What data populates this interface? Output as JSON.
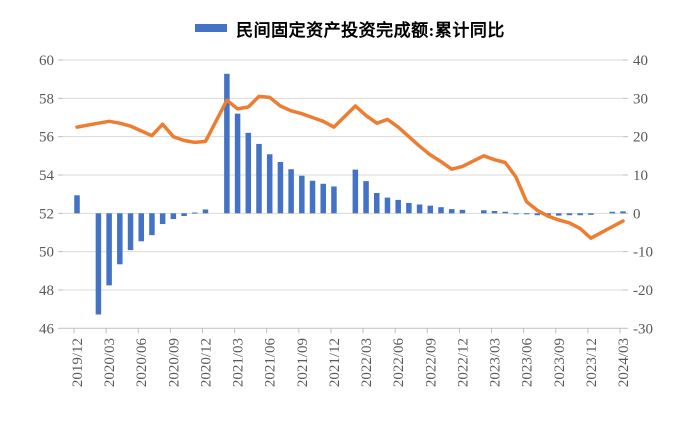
{
  "legend": {
    "bar_series_label": "民间固定资产投资完成额:累计同比"
  },
  "colors": {
    "bar": "#4472C4",
    "line": "#ED7D31",
    "grid": "#D9D9D9",
    "axis": "#BFBFBF",
    "tick_text": "#595959",
    "legend_text": "#000000",
    "background": "#FFFFFF"
  },
  "chart_data": {
    "type": "bar",
    "combo": "bar+line",
    "title": "",
    "legend_position": "top",
    "grid": true,
    "x": [
      "2019/12",
      "2020/02",
      "2020/03",
      "2020/04",
      "2020/05",
      "2020/06",
      "2020/07",
      "2020/08",
      "2020/09",
      "2020/10",
      "2020/11",
      "2020/12",
      "2021/02",
      "2021/03",
      "2021/04",
      "2021/05",
      "2021/06",
      "2021/07",
      "2021/08",
      "2021/09",
      "2021/10",
      "2021/11",
      "2021/12",
      "2022/02",
      "2022/03",
      "2022/04",
      "2022/05",
      "2022/06",
      "2022/07",
      "2022/08",
      "2022/09",
      "2022/10",
      "2022/11",
      "2022/12",
      "2023/02",
      "2023/03",
      "2023/04",
      "2023/05",
      "2023/06",
      "2023/07",
      "2023/08",
      "2023/09",
      "2023/10",
      "2023/11",
      "2023/12",
      "2024/02",
      "2024/03"
    ],
    "series": [
      {
        "name": "民间固定资产投资完成额:累计同比",
        "type": "bar",
        "axis": "right",
        "color": "#4472C4",
        "values": [
          4.7,
          -26.4,
          -18.8,
          -13.3,
          -9.6,
          -7.3,
          -5.7,
          -2.8,
          -1.5,
          -0.7,
          0.2,
          1.0,
          36.4,
          26.0,
          21.0,
          18.1,
          15.4,
          13.4,
          11.5,
          9.8,
          8.5,
          7.7,
          7.0,
          11.4,
          8.4,
          5.3,
          4.1,
          3.5,
          2.7,
          2.3,
          2.0,
          1.6,
          1.1,
          0.9,
          0.8,
          0.6,
          0.4,
          -0.1,
          -0.2,
          -0.5,
          -0.7,
          -0.6,
          -0.5,
          -0.5,
          -0.4,
          0.4,
          0.5
        ]
      },
      {
        "name": "",
        "type": "line",
        "axis": "left",
        "color": "#ED7D31",
        "values": [
          56.5,
          56.7,
          56.8,
          56.7,
          56.55,
          56.3,
          56.05,
          56.65,
          56.0,
          55.8,
          55.7,
          55.75,
          57.9,
          57.45,
          57.55,
          58.1,
          58.05,
          57.6,
          57.35,
          57.2,
          57.0,
          56.8,
          56.5,
          57.6,
          57.1,
          56.7,
          56.9,
          56.5,
          56.0,
          55.5,
          55.05,
          54.7,
          54.3,
          54.45,
          55.0,
          54.8,
          54.65,
          53.9,
          52.6,
          52.15,
          51.85,
          51.65,
          51.5,
          51.2,
          50.7,
          51.3,
          51.6
        ]
      }
    ],
    "left_axis": {
      "min": 46,
      "max": 60,
      "ticks": [
        60,
        58,
        56,
        54,
        52,
        50,
        48,
        46
      ]
    },
    "right_axis": {
      "min": -30,
      "max": 40,
      "ticks": [
        40,
        30,
        20,
        10,
        0,
        -10,
        -20,
        -30
      ]
    },
    "x_tick_labels": [
      "2019/12",
      "2020/03",
      "2020/06",
      "2020/09",
      "2020/12",
      "2021/03",
      "2021/06",
      "2021/09",
      "2021/12",
      "2022/03",
      "2022/06",
      "2022/09",
      "2022/12",
      "2023/03",
      "2023/06",
      "2023/09",
      "2023/12",
      "2024/03"
    ]
  }
}
